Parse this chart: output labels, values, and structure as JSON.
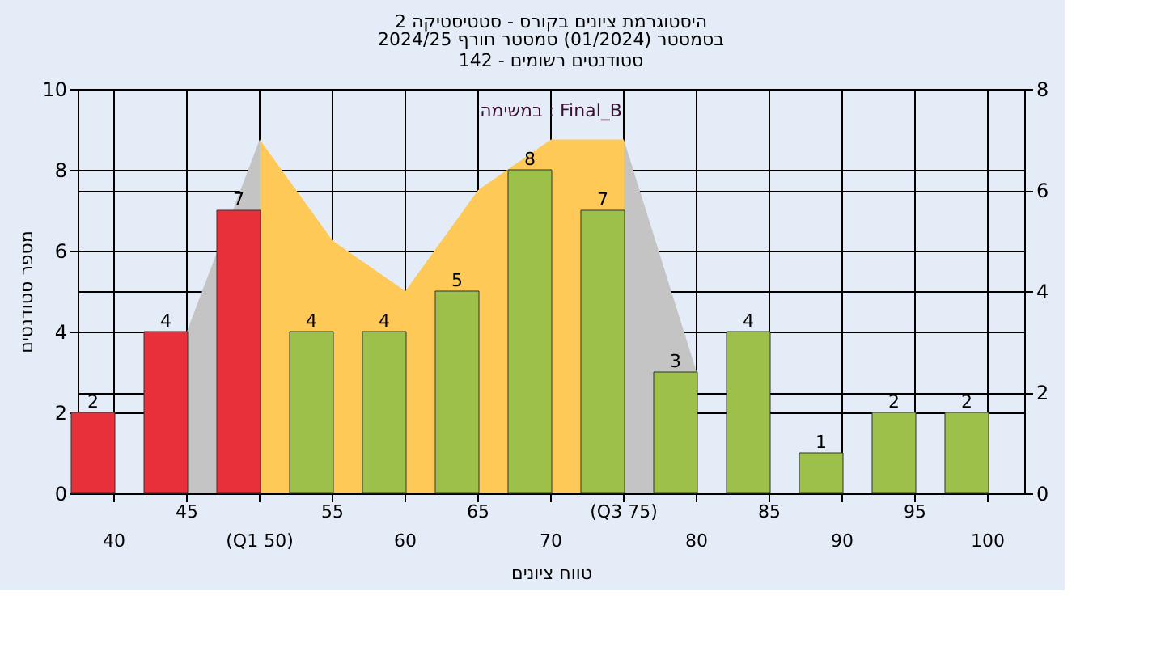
{
  "chart_data": {
    "type": "bar",
    "title": "היסטוגרמת ציונים בקורס - סטטיסטיקה 2",
    "subtitle": "בסמסטר  (01/2024)  סמסטר חורף 2024/25\nסטודנטים רשומים - 142",
    "xlabel": "טווח ציונים",
    "ylabel": "מספר סטודנטים",
    "annotations": [
      "במשימה : Final_B"
    ],
    "categories": [
      "40",
      "45",
      "(Q1 50)",
      "55",
      "60",
      "65",
      "70",
      "(Q3 75)",
      "80",
      "85",
      "90",
      "95",
      "100"
    ],
    "series": [
      {
        "type": "bar",
        "colors": [
          "#e8303a",
          "#e8303a",
          "#e8303a",
          "#9cc04a",
          "#9cc04a",
          "#9cc04a",
          "#9cc04a",
          "#9cc04a",
          "#9cc04a",
          "#9cc04a",
          "#9cc04a",
          "#9cc04a",
          "#9cc04a"
        ],
        "values": [
          2,
          4,
          7,
          4,
          4,
          5,
          8,
          7,
          3,
          4,
          1,
          2,
          2
        ],
        "value_labels": [
          "2",
          "4",
          "7",
          "4",
          "4",
          "5",
          "8",
          "7",
          "3",
          "4",
          "1",
          "2",
          "2"
        ]
      },
      {
        "type": "area",
        "axis": "y2",
        "color": "#c4c4c4",
        "values": [
          null,
          3.2,
          7,
          null,
          null,
          null,
          null,
          7,
          2.4,
          null,
          null,
          null,
          null
        ]
      },
      {
        "type": "area",
        "axis": "y2",
        "color": "#ffc957",
        "values": [
          null,
          null,
          7,
          5,
          4,
          6,
          7,
          7,
          null,
          null,
          null,
          null,
          null
        ]
      }
    ],
    "ylim": [
      0,
      10
    ],
    "yticks": [
      0,
      2,
      4,
      6,
      8,
      10
    ],
    "y2lim": [
      0,
      8
    ],
    "y2ticks": [
      0,
      2,
      4,
      6,
      8
    ],
    "grid": true
  }
}
